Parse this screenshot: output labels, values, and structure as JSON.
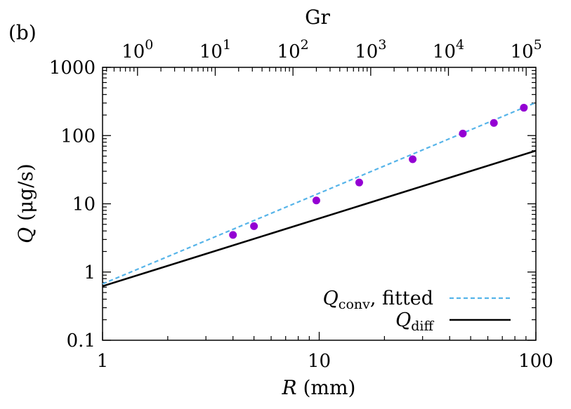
{
  "panel_label": "(b)",
  "chart_data": {
    "type": "scatter",
    "x_scale": "log",
    "y_scale": "log",
    "xlim": [
      1,
      100
    ],
    "ylim": [
      0.1,
      1000
    ],
    "xlabel": {
      "symbol": "R",
      "unit": " (mm)"
    },
    "ylabel": {
      "symbol": "Q",
      "unit": " (μg/s)"
    },
    "top_axis": {
      "label": "Gr",
      "tick_values": [
        1,
        10,
        100,
        1000,
        10000,
        100000
      ],
      "tick_labels": [
        {
          "base": "10",
          "exp": "0"
        },
        {
          "base": "10",
          "exp": "1"
        },
        {
          "base": "10",
          "exp": "2"
        },
        {
          "base": "10",
          "exp": "3"
        },
        {
          "base": "10",
          "exp": "4"
        },
        {
          "base": "10",
          "exp": "5"
        }
      ],
      "tick_positions_R": [
        1.45,
        3.32,
        7.56,
        17.3,
        39.5,
        90.2
      ]
    },
    "x_ticks": [
      1,
      10,
      100
    ],
    "x_tick_labels": [
      "1",
      "10",
      "100"
    ],
    "y_ticks": [
      0.1,
      1,
      10,
      100,
      1000
    ],
    "y_tick_labels": [
      "0.1",
      "1",
      "10",
      "100",
      "1000"
    ],
    "series": [
      {
        "kind": "points",
        "color": "#9400d3",
        "x": [
          4.0,
          5.0,
          9.7,
          15.3,
          27.0,
          46.0,
          64.0,
          88.0
        ],
        "y": [
          3.5,
          4.7,
          11.2,
          20.5,
          45.0,
          107,
          153,
          256
        ]
      },
      {
        "kind": "line",
        "name": {
          "symbol": "Q",
          "sub": "conv",
          "text": ", fitted"
        },
        "color": "#56b4e9",
        "dash": true,
        "x": [
          1,
          100
        ],
        "y": [
          0.67,
          305
        ]
      },
      {
        "kind": "line",
        "name": {
          "symbol": "Q",
          "sub": "diff",
          "text": ""
        },
        "color": "#000000",
        "dash": false,
        "x": [
          1,
          100
        ],
        "y": [
          0.62,
          60
        ]
      }
    ],
    "grid": false,
    "legend_position": "bottom-right"
  }
}
